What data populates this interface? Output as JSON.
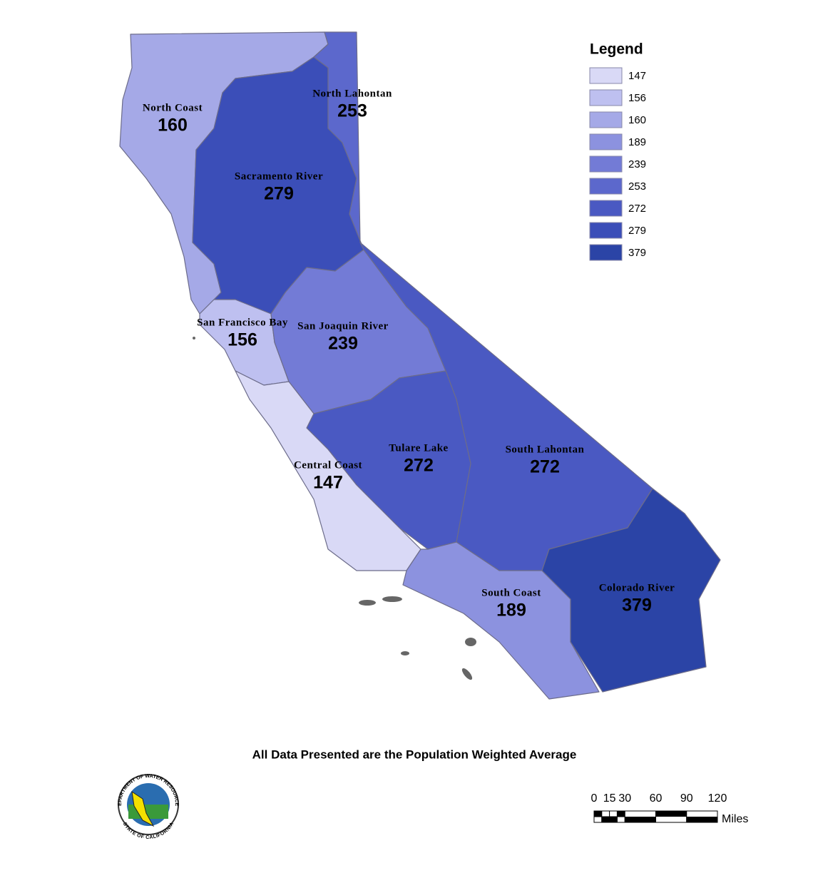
{
  "map": {
    "legend_title": "Legend",
    "legend": [
      {
        "value": 147,
        "color": "#d9d9f6"
      },
      {
        "value": 156,
        "color": "#bec0f0"
      },
      {
        "value": 160,
        "color": "#a5a9e7"
      },
      {
        "value": 189,
        "color": "#8c92df"
      },
      {
        "value": 239,
        "color": "#737bd6"
      },
      {
        "value": 253,
        "color": "#5c68cc"
      },
      {
        "value": 272,
        "color": "#4a59c2"
      },
      {
        "value": 279,
        "color": "#3b4eb8"
      },
      {
        "value": 379,
        "color": "#2b44a6"
      }
    ],
    "regions": [
      {
        "name": "North Coast",
        "value": 160
      },
      {
        "name": "Sacramento River",
        "value": 279
      },
      {
        "name": "North Lahontan",
        "value": 253
      },
      {
        "name": "San Francisco Bay",
        "value": 156
      },
      {
        "name": "San Joaquin River",
        "value": 239
      },
      {
        "name": "South Lahontan",
        "value": 272
      },
      {
        "name": "Tulare Lake",
        "value": 272
      },
      {
        "name": "Central Coast",
        "value": 147
      },
      {
        "name": "South Coast",
        "value": 189
      },
      {
        "name": "Colorado River",
        "value": 379
      }
    ],
    "footnote": "All Data Presented are the Population Weighted Average",
    "scale_bar": {
      "ticks": [
        0,
        15,
        30,
        60,
        90,
        120
      ],
      "unit": "Miles"
    },
    "logo": {
      "top": "DEPARTMENT OF WATER RESOURCES",
      "bottom": "STATE OF CALIFORNIA"
    }
  }
}
